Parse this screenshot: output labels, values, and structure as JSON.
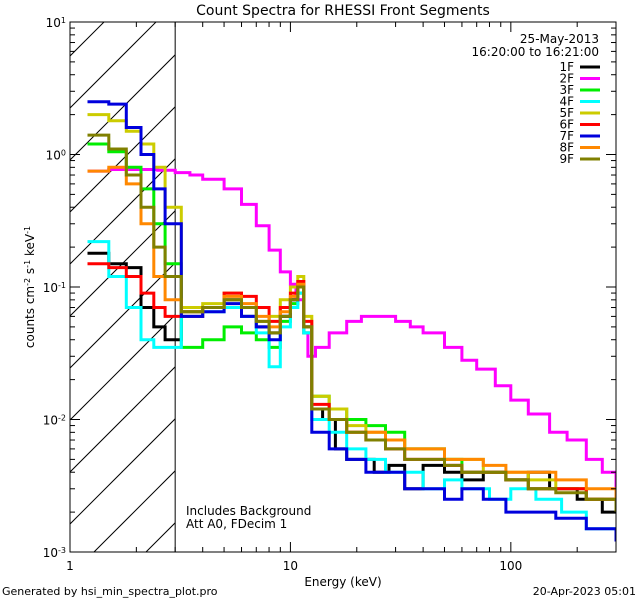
{
  "chart_data": {
    "type": "line",
    "title": "Count Spectra for RHESSI Front Segments",
    "xlabel": "Energy (keV)",
    "ylabel_main": "counts cm",
    "ylabel_sup1": "-2",
    "ylabel_mid": " s",
    "ylabel_sup2": "-1",
    "ylabel_tail": " keV",
    "ylabel_sup3": "-1",
    "x_scale": "log",
    "y_scale": "log",
    "xlim": [
      1,
      300
    ],
    "ylim": [
      0.001,
      10
    ],
    "x_ticklabels": [
      {
        "value": 1,
        "label": "1"
      },
      {
        "value": 10,
        "label": "10"
      },
      {
        "value": 100,
        "label": "100"
      }
    ],
    "y_ticklabels": [
      {
        "value": 10,
        "base": "10",
        "exp": "1"
      },
      {
        "value": 1,
        "base": "10",
        "exp": "0"
      },
      {
        "value": 0.1,
        "base": "10",
        "exp": "-1"
      },
      {
        "value": 0.01,
        "base": "10",
        "exp": "-2"
      },
      {
        "value": 0.001,
        "base": "10",
        "exp": "-3"
      }
    ],
    "hatched_region": [
      1,
      3
    ],
    "legend_placement": "top-right",
    "date_label": "25-May-2013",
    "time_label": "16:20:00 to 16:21:00",
    "annotation_lines": [
      "Includes Background",
      "Att A0, FDecim 1"
    ],
    "footer_left": "Generated by hsi_min_spectra_plot.pro",
    "footer_right": "20-Apr-2023 05:01",
    "series": [
      {
        "name": "1F",
        "color": "#000000",
        "points": [
          [
            1.2,
            0.18
          ],
          [
            1.5,
            0.15
          ],
          [
            1.8,
            0.14
          ],
          [
            2.1,
            0.07
          ],
          [
            2.4,
            0.05
          ],
          [
            2.7,
            0.04
          ],
          [
            3.2,
            0.065
          ],
          [
            4.0,
            0.07
          ],
          [
            5.0,
            0.08
          ],
          [
            6.0,
            0.06
          ],
          [
            7.0,
            0.05
          ],
          [
            8.0,
            0.045
          ],
          [
            9.0,
            0.06
          ],
          [
            10.0,
            0.08
          ],
          [
            10.8,
            0.1
          ],
          [
            11.5,
            0.05
          ],
          [
            12.5,
            0.012
          ],
          [
            14,
            0.01
          ],
          [
            16,
            0.006
          ],
          [
            18,
            0.005
          ],
          [
            20,
            0.005
          ],
          [
            24,
            0.004
          ],
          [
            28,
            0.0045
          ],
          [
            33,
            0.003
          ],
          [
            40,
            0.0045
          ],
          [
            50,
            0.004
          ],
          [
            60,
            0.0035
          ],
          [
            75,
            0.004
          ],
          [
            95,
            0.0035
          ],
          [
            120,
            0.004
          ],
          [
            150,
            0.003
          ],
          [
            200,
            0.0025
          ],
          [
            260,
            0.002
          ],
          [
            300,
            0.002
          ]
        ]
      },
      {
        "name": "2F",
        "color": "#ff00ff",
        "points": [
          [
            1.2,
            0.75
          ],
          [
            1.5,
            0.77
          ],
          [
            2.0,
            0.77
          ],
          [
            2.5,
            0.76
          ],
          [
            3.0,
            0.73
          ],
          [
            3.5,
            0.7
          ],
          [
            4.0,
            0.65
          ],
          [
            5.0,
            0.55
          ],
          [
            6.0,
            0.42
          ],
          [
            7.0,
            0.29
          ],
          [
            8.0,
            0.19
          ],
          [
            9.0,
            0.13
          ],
          [
            10.0,
            0.105
          ],
          [
            10.6,
            0.08
          ],
          [
            11.5,
            0.045
          ],
          [
            12.0,
            0.03
          ],
          [
            13,
            0.035
          ],
          [
            15,
            0.045
          ],
          [
            18,
            0.055
          ],
          [
            21,
            0.06
          ],
          [
            25,
            0.06
          ],
          [
            30,
            0.055
          ],
          [
            35,
            0.05
          ],
          [
            40,
            0.045
          ],
          [
            50,
            0.035
          ],
          [
            60,
            0.028
          ],
          [
            70,
            0.024
          ],
          [
            85,
            0.018
          ],
          [
            100,
            0.014
          ],
          [
            120,
            0.011
          ],
          [
            150,
            0.008
          ],
          [
            180,
            0.007
          ],
          [
            220,
            0.005
          ],
          [
            260,
            0.004
          ],
          [
            300,
            0.003
          ]
        ]
      },
      {
        "name": "3F",
        "color": "#00ee00",
        "points": [
          [
            1.2,
            1.2
          ],
          [
            1.5,
            1.05
          ],
          [
            1.8,
            0.8
          ],
          [
            2.1,
            0.55
          ],
          [
            2.4,
            0.3
          ],
          [
            2.7,
            0.15
          ],
          [
            3.2,
            0.035
          ],
          [
            4.0,
            0.04
          ],
          [
            5.0,
            0.05
          ],
          [
            6.0,
            0.045
          ],
          [
            7.0,
            0.04
          ],
          [
            8.0,
            0.035
          ],
          [
            9.0,
            0.055
          ],
          [
            10.0,
            0.075
          ],
          [
            10.8,
            0.09
          ],
          [
            11.5,
            0.045
          ],
          [
            12.5,
            0.015
          ],
          [
            15,
            0.012
          ],
          [
            18,
            0.01
          ],
          [
            22,
            0.009
          ],
          [
            27,
            0.008
          ],
          [
            33,
            0.006
          ],
          [
            40,
            0.006
          ],
          [
            50,
            0.005
          ],
          [
            60,
            0.004
          ],
          [
            75,
            0.004
          ],
          [
            95,
            0.0035
          ],
          [
            120,
            0.003
          ],
          [
            160,
            0.003
          ],
          [
            220,
            0.0025
          ],
          [
            300,
            0.002
          ]
        ]
      },
      {
        "name": "4F",
        "color": "#00ffff",
        "points": [
          [
            1.2,
            0.22
          ],
          [
            1.5,
            0.12
          ],
          [
            1.8,
            0.07
          ],
          [
            2.1,
            0.04
          ],
          [
            2.4,
            0.035
          ],
          [
            2.7,
            0.035
          ],
          [
            3.2,
            0.06
          ],
          [
            4.0,
            0.065
          ],
          [
            5.0,
            0.07
          ],
          [
            6.0,
            0.06
          ],
          [
            7.0,
            0.045
          ],
          [
            8.0,
            0.025
          ],
          [
            9.0,
            0.05
          ],
          [
            10.0,
            0.07
          ],
          [
            10.8,
            0.09
          ],
          [
            11.5,
            0.045
          ],
          [
            12.5,
            0.01
          ],
          [
            15,
            0.008
          ],
          [
            18,
            0.006
          ],
          [
            22,
            0.005
          ],
          [
            27,
            0.004
          ],
          [
            33,
            0.004
          ],
          [
            40,
            0.003
          ],
          [
            50,
            0.0035
          ],
          [
            60,
            0.003
          ],
          [
            80,
            0.0025
          ],
          [
            100,
            0.003
          ],
          [
            130,
            0.0025
          ],
          [
            170,
            0.002
          ],
          [
            220,
            0.0015
          ],
          [
            300,
            0.0012
          ]
        ]
      },
      {
        "name": "5F",
        "color": "#cccc00",
        "points": [
          [
            1.2,
            2.0
          ],
          [
            1.5,
            1.8
          ],
          [
            1.8,
            1.5
          ],
          [
            2.1,
            1.2
          ],
          [
            2.4,
            0.8
          ],
          [
            2.7,
            0.4
          ],
          [
            3.2,
            0.07
          ],
          [
            4.0,
            0.075
          ],
          [
            5.0,
            0.09
          ],
          [
            6.0,
            0.07
          ],
          [
            7.0,
            0.055
          ],
          [
            8.0,
            0.06
          ],
          [
            9.0,
            0.08
          ],
          [
            10.0,
            0.1
          ],
          [
            10.8,
            0.12
          ],
          [
            11.5,
            0.06
          ],
          [
            12.5,
            0.015
          ],
          [
            15,
            0.012
          ],
          [
            18,
            0.009
          ],
          [
            22,
            0.008
          ],
          [
            27,
            0.007
          ],
          [
            33,
            0.006
          ],
          [
            40,
            0.006
          ],
          [
            50,
            0.005
          ],
          [
            60,
            0.005
          ],
          [
            75,
            0.004
          ],
          [
            95,
            0.004
          ],
          [
            120,
            0.0035
          ],
          [
            160,
            0.003
          ],
          [
            220,
            0.0025
          ],
          [
            300,
            0.002
          ]
        ]
      },
      {
        "name": "6F",
        "color": "#ff0000",
        "points": [
          [
            1.2,
            0.15
          ],
          [
            1.5,
            0.14
          ],
          [
            1.8,
            0.12
          ],
          [
            2.1,
            0.09
          ],
          [
            2.4,
            0.07
          ],
          [
            2.7,
            0.06
          ],
          [
            3.2,
            0.06
          ],
          [
            4.0,
            0.07
          ],
          [
            5.0,
            0.09
          ],
          [
            6.0,
            0.085
          ],
          [
            7.0,
            0.07
          ],
          [
            8.0,
            0.055
          ],
          [
            9.0,
            0.07
          ],
          [
            10.0,
            0.09
          ],
          [
            10.8,
            0.11
          ],
          [
            11.5,
            0.055
          ],
          [
            12.5,
            0.013
          ],
          [
            15,
            0.01
          ],
          [
            18,
            0.008
          ],
          [
            22,
            0.007
          ],
          [
            27,
            0.006
          ],
          [
            33,
            0.005
          ],
          [
            40,
            0.005
          ],
          [
            50,
            0.0045
          ],
          [
            60,
            0.004
          ],
          [
            75,
            0.004
          ],
          [
            95,
            0.0035
          ],
          [
            120,
            0.003
          ],
          [
            160,
            0.003
          ],
          [
            220,
            0.0025
          ],
          [
            300,
            0.002
          ]
        ]
      },
      {
        "name": "7F",
        "color": "#0000dd",
        "points": [
          [
            1.2,
            2.5
          ],
          [
            1.5,
            2.4
          ],
          [
            1.8,
            1.6
          ],
          [
            2.1,
            1.0
          ],
          [
            2.4,
            0.55
          ],
          [
            2.7,
            0.3
          ],
          [
            3.2,
            0.06
          ],
          [
            4.0,
            0.065
          ],
          [
            5.0,
            0.075
          ],
          [
            6.0,
            0.06
          ],
          [
            7.0,
            0.05
          ],
          [
            8.0,
            0.04
          ],
          [
            9.0,
            0.06
          ],
          [
            10.0,
            0.08
          ],
          [
            10.8,
            0.1
          ],
          [
            11.5,
            0.05
          ],
          [
            12.5,
            0.008
          ],
          [
            15,
            0.006
          ],
          [
            18,
            0.005
          ],
          [
            22,
            0.004
          ],
          [
            27,
            0.004
          ],
          [
            33,
            0.003
          ],
          [
            40,
            0.003
          ],
          [
            50,
            0.0025
          ],
          [
            60,
            0.003
          ],
          [
            75,
            0.0025
          ],
          [
            95,
            0.002
          ],
          [
            120,
            0.002
          ],
          [
            160,
            0.0018
          ],
          [
            220,
            0.0015
          ],
          [
            300,
            0.0012
          ]
        ]
      },
      {
        "name": "8F",
        "color": "#ff8800",
        "points": [
          [
            1.2,
            0.75
          ],
          [
            1.5,
            0.8
          ],
          [
            1.8,
            0.6
          ],
          [
            2.1,
            0.3
          ],
          [
            2.4,
            0.12
          ],
          [
            2.7,
            0.08
          ],
          [
            3.2,
            0.065
          ],
          [
            4.0,
            0.07
          ],
          [
            5.0,
            0.085
          ],
          [
            6.0,
            0.075
          ],
          [
            7.0,
            0.06
          ],
          [
            8.0,
            0.05
          ],
          [
            9.0,
            0.065
          ],
          [
            10.0,
            0.085
          ],
          [
            10.8,
            0.105
          ],
          [
            11.5,
            0.05
          ],
          [
            12.5,
            0.012
          ],
          [
            15,
            0.01
          ],
          [
            18,
            0.008
          ],
          [
            22,
            0.008
          ],
          [
            27,
            0.007
          ],
          [
            33,
            0.006
          ],
          [
            40,
            0.006
          ],
          [
            50,
            0.005
          ],
          [
            60,
            0.005
          ],
          [
            75,
            0.0045
          ],
          [
            95,
            0.004
          ],
          [
            120,
            0.004
          ],
          [
            160,
            0.0035
          ],
          [
            220,
            0.003
          ],
          [
            300,
            0.0025
          ]
        ]
      },
      {
        "name": "9F",
        "color": "#808000",
        "points": [
          [
            1.2,
            1.4
          ],
          [
            1.5,
            1.1
          ],
          [
            1.8,
            0.7
          ],
          [
            2.1,
            0.4
          ],
          [
            2.4,
            0.2
          ],
          [
            2.7,
            0.12
          ],
          [
            3.2,
            0.065
          ],
          [
            4.0,
            0.07
          ],
          [
            5.0,
            0.08
          ],
          [
            6.0,
            0.07
          ],
          [
            7.0,
            0.055
          ],
          [
            8.0,
            0.045
          ],
          [
            9.0,
            0.06
          ],
          [
            10.0,
            0.08
          ],
          [
            10.8,
            0.1
          ],
          [
            11.5,
            0.05
          ],
          [
            12.5,
            0.012
          ],
          [
            15,
            0.01
          ],
          [
            18,
            0.008
          ],
          [
            22,
            0.007
          ],
          [
            27,
            0.006
          ],
          [
            33,
            0.005
          ],
          [
            40,
            0.005
          ],
          [
            50,
            0.0045
          ],
          [
            60,
            0.004
          ],
          [
            75,
            0.004
          ],
          [
            95,
            0.0035
          ],
          [
            120,
            0.003
          ],
          [
            160,
            0.0028
          ],
          [
            220,
            0.0025
          ],
          [
            300,
            0.002
          ]
        ]
      }
    ]
  }
}
